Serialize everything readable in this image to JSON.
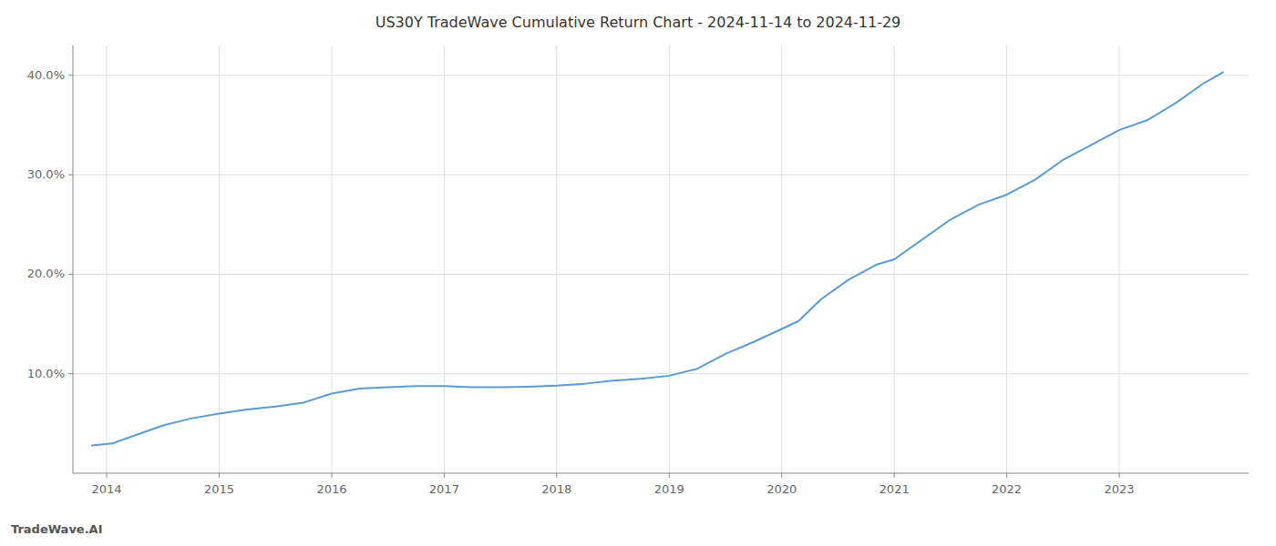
{
  "chart_data": {
    "type": "line",
    "title": "US30Y TradeWave Cumulative Return Chart - 2024-11-14 to 2024-11-29",
    "annotations": [
      "TradeWave.AI"
    ],
    "x": [
      2013.87,
      2014.05,
      2014.25,
      2014.5,
      2014.75,
      2015.0,
      2015.25,
      2015.5,
      2015.75,
      2016.0,
      2016.25,
      2016.5,
      2016.75,
      2017.0,
      2017.25,
      2017.5,
      2017.75,
      2018.0,
      2018.25,
      2018.5,
      2018.75,
      2019.0,
      2019.25,
      2019.5,
      2019.75,
      2020.0,
      2020.15,
      2020.35,
      2020.6,
      2020.85,
      2021.0,
      2021.25,
      2021.5,
      2021.75,
      2022.0,
      2022.25,
      2022.5,
      2022.75,
      2023.0,
      2023.25,
      2023.5,
      2023.75,
      2023.92
    ],
    "values": [
      2.8,
      3.0,
      3.8,
      4.8,
      5.5,
      6.0,
      6.4,
      6.7,
      7.1,
      8.0,
      8.5,
      8.65,
      8.75,
      8.75,
      8.65,
      8.65,
      8.7,
      8.8,
      9.0,
      9.3,
      9.5,
      9.8,
      10.5,
      12.0,
      13.2,
      14.5,
      15.3,
      17.5,
      19.5,
      21.0,
      21.5,
      23.5,
      25.5,
      27.0,
      28.0,
      29.5,
      31.5,
      33.0,
      34.5,
      35.5,
      37.2,
      39.2,
      40.3
    ],
    "color": "#5b9bd5",
    "xlim": [
      2013.7,
      2024.15
    ],
    "ylim": [
      0,
      43
    ],
    "xticks": [
      2014,
      2015,
      2016,
      2017,
      2018,
      2019,
      2020,
      2021,
      2022,
      2023
    ],
    "yticks": [
      {
        "value": 10.0,
        "label": "10.0%"
      },
      {
        "value": 20.0,
        "label": "20.0%"
      },
      {
        "value": 30.0,
        "label": "30.0%"
      },
      {
        "value": 40.0,
        "label": "40.0%"
      }
    ],
    "grid": true
  }
}
